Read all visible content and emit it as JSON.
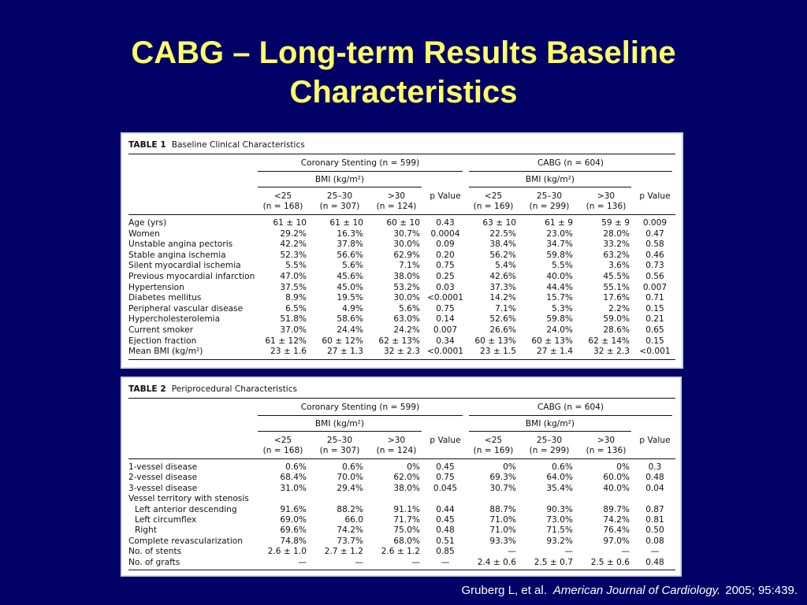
{
  "slide": {
    "title_line1": "CABG – Long-term Results Baseline",
    "title_line2": "Characteristics",
    "title_color": "#ffff66",
    "background_color": "#000066"
  },
  "citation": {
    "authors": "Gruberg L, et al.",
    "journal": "American Journal of Cardiology.",
    "details": "2005; 95:439."
  },
  "table1": {
    "tag": "TABLE 1",
    "caption": "Baseline Clinical Characteristics",
    "group_left": "Coronary Stenting (n = 599)",
    "group_right": "CABG (n = 604)",
    "bmi_label": "BMI (kg/m²)",
    "columns": [
      {
        "top": "<25",
        "bottom": "(n = 168)"
      },
      {
        "top": "25–30",
        "bottom": "(n = 307)"
      },
      {
        "top": ">30",
        "bottom": "(n = 124)"
      },
      {
        "top": "",
        "bottom": "p Value"
      },
      {
        "top": "<25",
        "bottom": "(n = 169)"
      },
      {
        "top": "25–30",
        "bottom": "(n = 299)"
      },
      {
        "top": ">30",
        "bottom": "(n = 136)"
      },
      {
        "top": "",
        "bottom": "p Value"
      }
    ],
    "rows": [
      {
        "label": "Age (yrs)",
        "values": [
          "61 ± 10",
          "61 ± 10",
          "60 ± 10",
          "0.43",
          "63 ± 10",
          "61 ± 9",
          "59 ± 9",
          "0.009"
        ]
      },
      {
        "label": "Women",
        "values": [
          "29.2%",
          "16.3%",
          "30.7%",
          "0.0004",
          "22.5%",
          "23.0%",
          "28.0%",
          "0.47"
        ]
      },
      {
        "label": "Unstable angina pectoris",
        "values": [
          "42.2%",
          "37.8%",
          "30.0%",
          "0.09",
          "38.4%",
          "34.7%",
          "33.2%",
          "0.58"
        ]
      },
      {
        "label": "Stable angina ischemia",
        "values": [
          "52.3%",
          "56.6%",
          "62.9%",
          "0.20",
          "56.2%",
          "59.8%",
          "63.2%",
          "0.46"
        ]
      },
      {
        "label": "Silent myocardial ischemia",
        "values": [
          "5.5%",
          "5.6%",
          "7.1%",
          "0.75",
          "5.4%",
          "5.5%",
          "3.6%",
          "0.73"
        ]
      },
      {
        "label": "Previous myocardial infarction",
        "values": [
          "47.0%",
          "45.6%",
          "38.0%",
          "0.25",
          "42.6%",
          "40.0%",
          "45.5%",
          "0.56"
        ]
      },
      {
        "label": "Hypertension",
        "values": [
          "37.5%",
          "45.0%",
          "53.2%",
          "0.03",
          "37.3%",
          "44.4%",
          "55.1%",
          "0.007"
        ]
      },
      {
        "label": "Diabetes mellitus",
        "values": [
          "8.9%",
          "19.5%",
          "30.0%",
          "<0.0001",
          "14.2%",
          "15.7%",
          "17.6%",
          "0.71"
        ]
      },
      {
        "label": "Peripheral vascular disease",
        "values": [
          "6.5%",
          "4.9%",
          "5.6%",
          "0.75",
          "7.1%",
          "5.3%",
          "2.2%",
          "0.15"
        ]
      },
      {
        "label": "Hypercholesterolemia",
        "values": [
          "51.8%",
          "58.6%",
          "63.0%",
          "0.14",
          "52.6%",
          "59.8%",
          "59.0%",
          "0.21"
        ]
      },
      {
        "label": "Current smoker",
        "values": [
          "37.0%",
          "24.4%",
          "24.2%",
          "0.007",
          "26.6%",
          "24.0%",
          "28.6%",
          "0.65"
        ]
      },
      {
        "label": "Ejection fraction",
        "values": [
          "61 ± 12%",
          "60 ± 12%",
          "62 ± 13%",
          "0.34",
          "60 ± 13%",
          "60 ± 13%",
          "62 ± 14%",
          "0.15"
        ]
      },
      {
        "label": "Mean BMI (kg/m²)",
        "values": [
          "23 ± 1.6",
          "27 ± 1.3",
          "32 ± 2.3",
          "<0.0001",
          "23 ± 1.5",
          "27 ± 1.4",
          "32 ± 2.3",
          "<0.001"
        ]
      }
    ]
  },
  "table2": {
    "tag": "TABLE 2",
    "caption": "Periprocedural Characteristics",
    "group_left": "Coronary Stenting (n = 599)",
    "group_right": "CABG (n = 604)",
    "bmi_label": "BMI (kg/m²)",
    "columns": [
      {
        "top": "<25",
        "bottom": "(n = 168)"
      },
      {
        "top": "25–30",
        "bottom": "(n = 307)"
      },
      {
        "top": ">30",
        "bottom": "(n = 124)"
      },
      {
        "top": "",
        "bottom": "p Value"
      },
      {
        "top": "<25",
        "bottom": "(n = 169)"
      },
      {
        "top": "25–30",
        "bottom": "(n = 299)"
      },
      {
        "top": ">30",
        "bottom": "(n = 136)"
      },
      {
        "top": "",
        "bottom": "p Value"
      }
    ],
    "rows": [
      {
        "label": "1-vessel disease",
        "indent": false,
        "values": [
          "0.6%",
          "0.6%",
          "0%",
          "0.45",
          "0%",
          "0.6%",
          "0%",
          "0.3"
        ]
      },
      {
        "label": "2-vessel disease",
        "indent": false,
        "values": [
          "68.4%",
          "70.0%",
          "62.0%",
          "0.75",
          "69.3%",
          "64.0%",
          "60.0%",
          "0.48"
        ]
      },
      {
        "label": "3-vessel disease",
        "indent": false,
        "values": [
          "31.0%",
          "29.4%",
          "38.0%",
          "0.045",
          "30.7%",
          "35.4%",
          "40.0%",
          "0.04"
        ]
      },
      {
        "label": "Vessel territory with stenosis",
        "indent": false,
        "values": [
          "",
          "",
          "",
          "",
          "",
          "",
          "",
          ""
        ]
      },
      {
        "label": "Left anterior descending",
        "indent": true,
        "values": [
          "91.6%",
          "88.2%",
          "91.1%",
          "0.44",
          "88.7%",
          "90.3%",
          "89.7%",
          "0.87"
        ]
      },
      {
        "label": "Left circumflex",
        "indent": true,
        "values": [
          "69.0%",
          "66.0",
          "71.7%",
          "0.45",
          "71.0%",
          "73.0%",
          "74.2%",
          "0.81"
        ]
      },
      {
        "label": "Right",
        "indent": true,
        "values": [
          "69.6%",
          "74.2%",
          "75.0%",
          "0.48",
          "71.0%",
          "71.5%",
          "76.4%",
          "0.50"
        ]
      },
      {
        "label": "Complete revascularization",
        "indent": false,
        "values": [
          "74.8%",
          "73.7%",
          "68.0%",
          "0.51",
          "93.3%",
          "93.2%",
          "97.0%",
          "0.08"
        ]
      },
      {
        "label": "No. of stents",
        "indent": false,
        "values": [
          "2.6 ± 1.0",
          "2.7 ± 1.2",
          "2.6 ± 1.2",
          "0.85",
          "—",
          "—",
          "—",
          "—"
        ]
      },
      {
        "label": "No. of grafts",
        "indent": false,
        "values": [
          "—",
          "—",
          "—",
          "—",
          "2.4 ± 0.6",
          "2.5 ± 0.7",
          "2.5 ± 0.6",
          "0.48"
        ]
      }
    ]
  }
}
